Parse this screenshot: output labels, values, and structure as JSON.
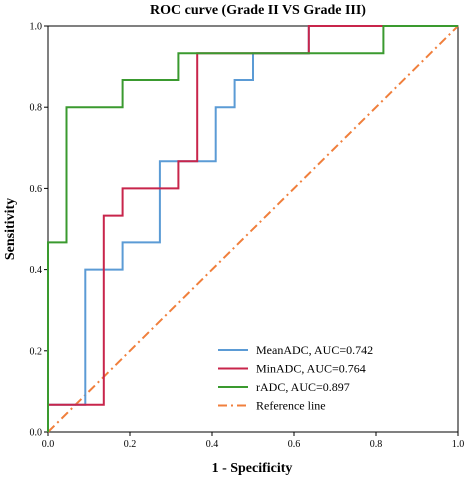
{
  "chart_data": {
    "type": "line",
    "title": "ROC curve  (Grade II    VS   Grade III)",
    "xlabel": "1 - Specificity",
    "ylabel": "Sensitivity",
    "xlim": [
      0,
      1
    ],
    "ylim": [
      0,
      1
    ],
    "xticks": [
      "0.0",
      "0.2",
      "0.4",
      "0.6",
      "0.8",
      "1.0"
    ],
    "yticks": [
      "0.0",
      "0.2",
      "0.4",
      "0.6",
      "0.8",
      "1.0"
    ],
    "grid": false,
    "legend_position": "bottom-right",
    "series": [
      {
        "name": "MeanADC, AUC=0.742",
        "color": "#5b9bd5",
        "line_style": "solid",
        "points": [
          [
            0,
            0
          ],
          [
            0,
            0.067
          ],
          [
            0.091,
            0.067
          ],
          [
            0.091,
            0.4
          ],
          [
            0.182,
            0.4
          ],
          [
            0.182,
            0.467
          ],
          [
            0.273,
            0.467
          ],
          [
            0.273,
            0.667
          ],
          [
            0.409,
            0.667
          ],
          [
            0.409,
            0.8
          ],
          [
            0.455,
            0.8
          ],
          [
            0.455,
            0.867
          ],
          [
            0.5,
            0.867
          ],
          [
            0.5,
            0.933
          ],
          [
            0.636,
            0.933
          ],
          [
            0.636,
            1.0
          ],
          [
            1.0,
            1.0
          ]
        ]
      },
      {
        "name": "MinADC, AUC=0.764",
        "color": "#c8254b",
        "line_style": "solid",
        "points": [
          [
            0,
            0
          ],
          [
            0,
            0.067
          ],
          [
            0.136,
            0.067
          ],
          [
            0.136,
            0.533
          ],
          [
            0.182,
            0.533
          ],
          [
            0.182,
            0.6
          ],
          [
            0.318,
            0.6
          ],
          [
            0.318,
            0.667
          ],
          [
            0.364,
            0.667
          ],
          [
            0.364,
            0.933
          ],
          [
            0.636,
            0.933
          ],
          [
            0.636,
            1.0
          ],
          [
            1.0,
            1.0
          ]
        ]
      },
      {
        "name": "rADC, AUC=0.897",
        "color": "#3a9a2f",
        "line_style": "solid",
        "points": [
          [
            0,
            0
          ],
          [
            0,
            0.467
          ],
          [
            0.045,
            0.467
          ],
          [
            0.045,
            0.8
          ],
          [
            0.182,
            0.8
          ],
          [
            0.182,
            0.867
          ],
          [
            0.318,
            0.867
          ],
          [
            0.318,
            0.933
          ],
          [
            0.818,
            0.933
          ],
          [
            0.818,
            1.0
          ],
          [
            1.0,
            1.0
          ]
        ]
      },
      {
        "name": "Reference line",
        "color": "#f07f3c",
        "line_style": "dashdot",
        "points": [
          [
            0,
            0
          ],
          [
            1,
            1
          ]
        ]
      }
    ]
  }
}
